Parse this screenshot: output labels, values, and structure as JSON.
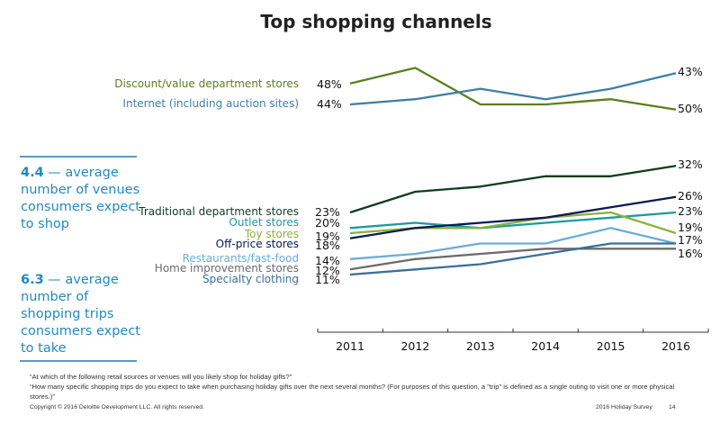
{
  "title": "Top shopping channels",
  "stats": [
    {
      "value": "4.4",
      "text": " — average number of venues consumers expect to shop"
    },
    {
      "value": "6.3",
      "text": " — average number of shopping trips consumers expect to take"
    }
  ],
  "footer": {
    "note1": "“At which of the following retail sources or venues will you likely shop for holiday gifts?”",
    "note2": "“How many specific shopping trips do you expect to take when purchasing holiday gifts over the next several months? (For purposes of this question, a \"trip\" is defined as a single outing to visit one or more physical stores.)”",
    "copyright": "Copyright © 2016 Deloitte Development LLC. All rights reserved.",
    "survey": "2016 Holiday Survey",
    "page": "14"
  },
  "chart_data": {
    "type": "line",
    "title": "Top shopping channels",
    "xlabel": "",
    "ylabel": "",
    "x": [
      "2011",
      "2012",
      "2013",
      "2014",
      "2015",
      "2016"
    ],
    "grid": false,
    "panels": [
      {
        "name": "top",
        "ylim": [
          42,
          52
        ],
        "series": [
          {
            "name": "Discount/value department stores",
            "color": "#5b7f1e",
            "values": [
              48,
              51,
              44,
              44,
              45,
              43
            ],
            "start_label": "48%",
            "end_label": "43%"
          },
          {
            "name": "Internet (including auction sites)",
            "color": "#3f7fa6",
            "values": [
              44,
              45,
              47,
              45,
              47,
              50
            ],
            "start_label": "44%",
            "end_label": "50%"
          }
        ]
      },
      {
        "name": "bottom",
        "ylim": [
          10,
          33
        ],
        "series": [
          {
            "name": "Traditional department stores",
            "color": "#0d3d1f",
            "values": [
              23,
              27,
              28,
              30,
              30,
              32
            ],
            "start_label": "23%",
            "end_label": "32%"
          },
          {
            "name": "Outlet stores",
            "color": "#1b9aa3",
            "values": [
              20,
              21,
              20,
              21,
              22,
              23
            ],
            "start_label": "20%",
            "end_label": "23%"
          },
          {
            "name": "Toy stores",
            "color": "#8ab33a",
            "values": [
              19,
              20,
              20,
              22,
              23,
              19
            ],
            "start_label": "19%",
            "end_label": "19%"
          },
          {
            "name": "Off-price stores",
            "color": "#0b1a52",
            "values": [
              18,
              20,
              21,
              22,
              24,
              26
            ],
            "start_label": "18%",
            "end_label": "26%"
          },
          {
            "name": "Restaurants/fast-food",
            "color": "#6aaed6",
            "values": [
              14,
              15,
              17,
              17,
              20,
              17
            ],
            "start_label": "14%",
            "end_label": "17%"
          },
          {
            "name": "Home improvement stores",
            "color": "#6b6b6b",
            "values": [
              12,
              14,
              15,
              16,
              16,
              16
            ],
            "start_label": "12%",
            "end_label": "16%"
          },
          {
            "name": "Specialty clothing",
            "color": "#3b6f99",
            "values": [
              11,
              12,
              13,
              15,
              17,
              17
            ],
            "start_label": "11%",
            "end_label": ""
          }
        ]
      }
    ]
  }
}
